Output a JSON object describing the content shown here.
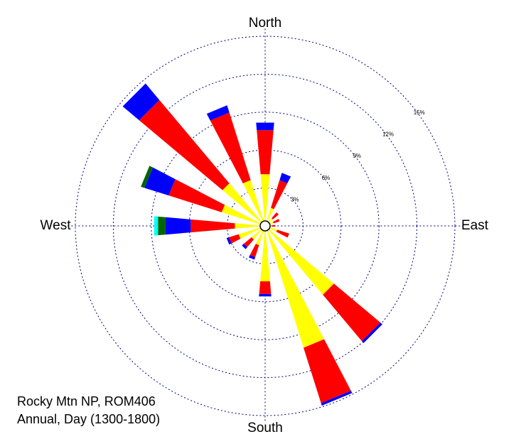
{
  "chart_data": {
    "type": "windrose",
    "caption": [
      "Rocky Mtn NP, ROM406",
      "Annual, Day (1300-1800)"
    ],
    "categories": [
      "North",
      null,
      null,
      null,
      "East",
      null,
      null,
      null,
      "South",
      null,
      null,
      null,
      "West",
      null,
      null,
      null
    ],
    "series": [
      {
        "color": "#ffff00",
        "values": [
          4.1,
          1.5,
          0.8,
          0.7,
          0.5,
          1.0,
          7.1,
          10.1,
          4.4,
          1.6,
          1.4,
          2.2,
          2.4,
          3.6,
          4.4,
          3.8
        ]
      },
      {
        "color": "#ff0000",
        "values": [
          3.5,
          2.3,
          0.6,
          0.5,
          0.3,
          1.0,
          4.8,
          4.6,
          1.0,
          1.0,
          0.8,
          0.8,
          3.5,
          4.4,
          8.6,
          5.6
        ]
      },
      {
        "color": "#0000ff",
        "values": [
          0.6,
          0.6,
          0,
          0,
          0,
          0,
          0.2,
          0.2,
          0.2,
          0.2,
          0.2,
          0.2,
          2.0,
          2.0,
          1.7,
          0.6
        ]
      },
      {
        "color": "#006400",
        "values": [
          0,
          0,
          0,
          0,
          0,
          0,
          0,
          0,
          0,
          0,
          0,
          0,
          0.6,
          0.3,
          0,
          0
        ]
      },
      {
        "color": "#00ffff",
        "values": [
          0,
          0,
          0,
          0,
          0,
          0,
          0,
          0,
          0,
          0,
          0,
          0,
          0.3,
          0,
          0,
          0
        ]
      }
    ],
    "rlim": [
      0,
      15
    ],
    "rticks": [
      {
        "value": 3,
        "label": "3%"
      },
      {
        "value": 6,
        "label": "6%"
      },
      {
        "value": 9,
        "label": "9%"
      },
      {
        "value": 12,
        "label": "12%"
      },
      {
        "value": 15,
        "label": "15%"
      }
    ]
  }
}
